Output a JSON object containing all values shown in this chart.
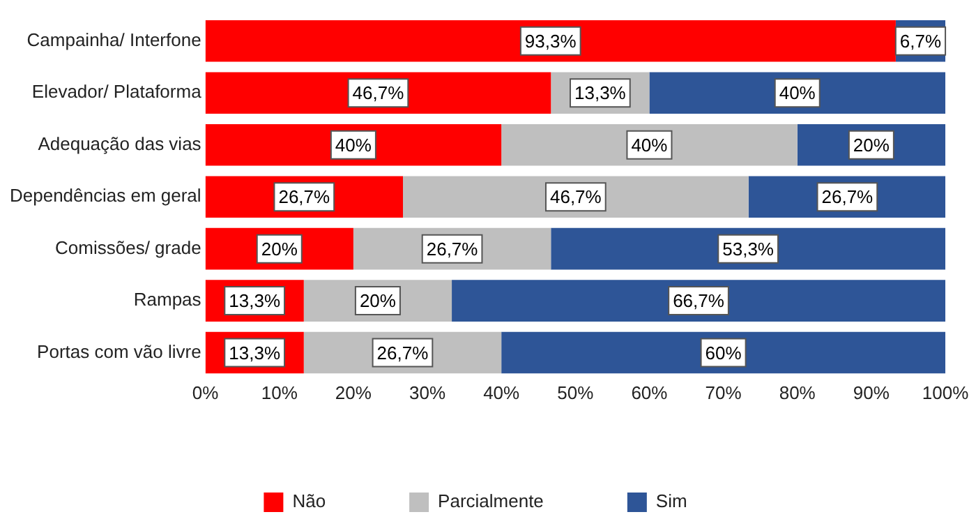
{
  "chart_data": {
    "type": "bar",
    "orientation": "horizontal",
    "stacked": true,
    "categories": [
      "Campainha/ Interfone",
      "Elevador/ Plataforma",
      "Adequação das vias",
      "Dependências em geral",
      "Comissões/ grade",
      "Rampas",
      "Portas com vão livre"
    ],
    "series": [
      {
        "name": "Não",
        "color": "#ff0000",
        "values": [
          93.3,
          46.7,
          40,
          26.7,
          20,
          13.3,
          13.3
        ],
        "value_labels": [
          "93,3%",
          "46,7%",
          "40%",
          "26,7%",
          "20%",
          "13,3%",
          "13,3%"
        ]
      },
      {
        "name": "Parcialmente",
        "color": "#bfbfbf",
        "values": [
          0,
          13.3,
          40,
          46.7,
          26.7,
          20,
          26.7
        ],
        "value_labels": [
          null,
          "13,3%",
          "40%",
          "46,7%",
          "26,7%",
          "20%",
          "26,7%"
        ]
      },
      {
        "name": "Sim",
        "color": "#2e5597",
        "values": [
          6.7,
          40,
          20,
          26.7,
          53.3,
          66.7,
          60
        ],
        "value_labels": [
          "6,7%",
          "40%",
          "20%",
          "26,7%",
          "53,3%",
          "66,7%",
          "60%"
        ]
      }
    ],
    "xlim": [
      0,
      100
    ],
    "xticks": [
      {
        "value": 0,
        "label": "0%"
      },
      {
        "value": 10,
        "label": "10%"
      },
      {
        "value": 20,
        "label": "20%"
      },
      {
        "value": 30,
        "label": "30%"
      },
      {
        "value": 40,
        "label": "40%"
      },
      {
        "value": 50,
        "label": "50%"
      },
      {
        "value": 60,
        "label": "60%"
      },
      {
        "value": 70,
        "label": "70%"
      },
      {
        "value": 80,
        "label": "80%"
      },
      {
        "value": 90,
        "label": "90%"
      },
      {
        "value": 100,
        "label": "100%"
      }
    ],
    "grid": false,
    "legend": "bottom"
  }
}
